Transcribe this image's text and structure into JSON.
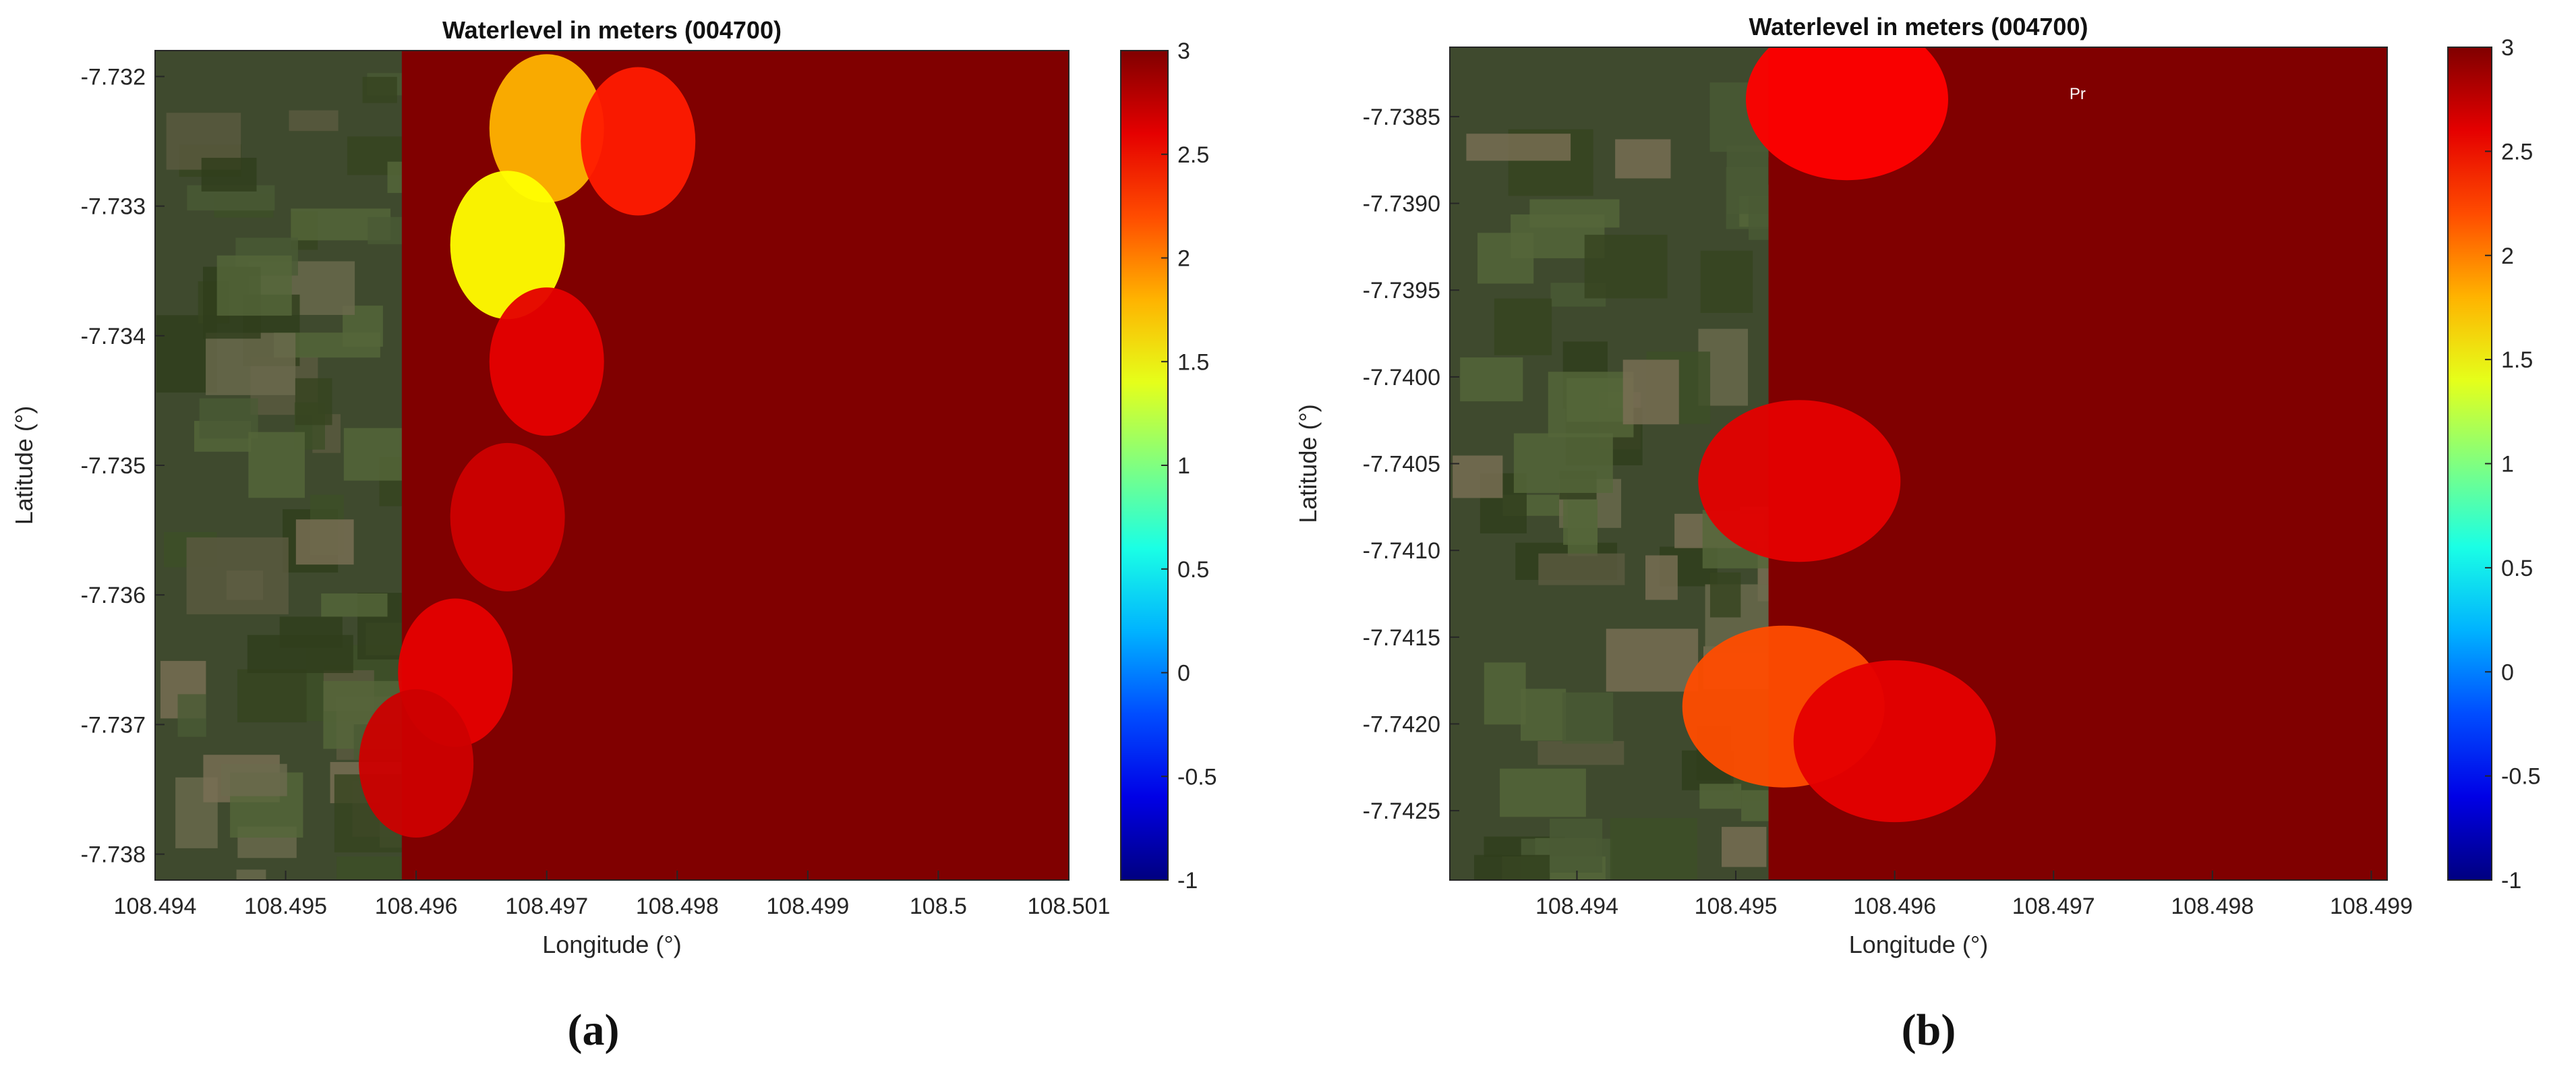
{
  "chart_data": [
    {
      "type": "heatmap",
      "title": "Waterlevel in meters (004700)",
      "xlabel": "Longitude (°)",
      "ylabel": "Latitude (°)",
      "xlim": [
        108.494,
        108.501
      ],
      "ylim": [
        -7.7382,
        -7.7318
      ],
      "xticks": [
        108.494,
        108.495,
        108.496,
        108.497,
        108.498,
        108.499,
        108.5,
        108.501
      ],
      "xtick_labels": [
        "108.494",
        "108.495",
        "108.496",
        "108.497",
        "108.498",
        "108.499",
        "108.5",
        "108.501"
      ],
      "yticks": [
        -7.732,
        -7.733,
        -7.734,
        -7.735,
        -7.736,
        -7.737,
        -7.738
      ],
      "ytick_labels": [
        "-7.732",
        "-7.733",
        "-7.734",
        "-7.735",
        "-7.736",
        "-7.737",
        "-7.738"
      ],
      "colorbar": {
        "min": -1,
        "max": 3,
        "colormap": "jet",
        "ticks": [
          3,
          2.5,
          2,
          1.5,
          1,
          0.5,
          0,
          -0.5,
          -1
        ],
        "tick_labels": [
          "3",
          "2.5",
          "2",
          "1.5",
          "1",
          "0.5",
          "0",
          "-0.5",
          "-1"
        ]
      },
      "background": "satellite imagery",
      "caption": "(a)",
      "flood_regions": [
        {
          "lon": 108.4985,
          "lat": -7.7352,
          "value": 3.0
        },
        {
          "lon": 108.497,
          "lat": -7.7324,
          "value": 1.8
        },
        {
          "lon": 108.4977,
          "lat": -7.7325,
          "value": 2.4
        },
        {
          "lon": 108.4967,
          "lat": -7.7333,
          "value": 1.5
        },
        {
          "lon": 108.497,
          "lat": -7.7342,
          "value": 2.6
        },
        {
          "lon": 108.4967,
          "lat": -7.7354,
          "value": 2.7
        },
        {
          "lon": 108.4963,
          "lat": -7.7366,
          "value": 2.6
        },
        {
          "lon": 108.496,
          "lat": -7.7373,
          "value": 2.7
        }
      ]
    },
    {
      "type": "heatmap",
      "title": "Waterlevel in meters (004700)",
      "xlabel": "Longitude (°)",
      "ylabel": "Latitude (°)",
      "xlim": [
        108.4932,
        108.4991
      ],
      "ylim": [
        -7.7429,
        -7.7381
      ],
      "xticks": [
        108.494,
        108.495,
        108.496,
        108.497,
        108.498,
        108.499
      ],
      "xtick_labels": [
        "108.494",
        "108.495",
        "108.496",
        "108.497",
        "108.498",
        "108.499"
      ],
      "yticks": [
        -7.7385,
        -7.739,
        -7.7395,
        -7.74,
        -7.7405,
        -7.741,
        -7.7415,
        -7.742,
        -7.7425
      ],
      "ytick_labels": [
        "-7.7385",
        "-7.7390",
        "-7.7395",
        "-7.7400",
        "-7.7405",
        "-7.7410",
        "-7.7415",
        "-7.7420",
        "-7.7425"
      ],
      "colorbar": {
        "min": -1,
        "max": 3,
        "colormap": "jet",
        "ticks": [
          3,
          2.5,
          2,
          1.5,
          1,
          0.5,
          0,
          -0.5,
          -1
        ],
        "tick_labels": [
          "3",
          "2.5",
          "2",
          "1.5",
          "1",
          "0.5",
          "0",
          "-0.5",
          "-1"
        ]
      },
      "background": "satellite imagery",
      "caption": "(b)",
      "map_label": "Pr",
      "flood_regions": [
        {
          "lon": 108.4975,
          "lat": -7.7405,
          "value": 3.0
        },
        {
          "lon": 108.4957,
          "lat": -7.7384,
          "value": 2.5
        },
        {
          "lon": 108.4954,
          "lat": -7.7406,
          "value": 2.6
        },
        {
          "lon": 108.4953,
          "lat": -7.7419,
          "value": 2.2
        },
        {
          "lon": 108.496,
          "lat": -7.7421,
          "value": 2.6
        }
      ]
    }
  ]
}
